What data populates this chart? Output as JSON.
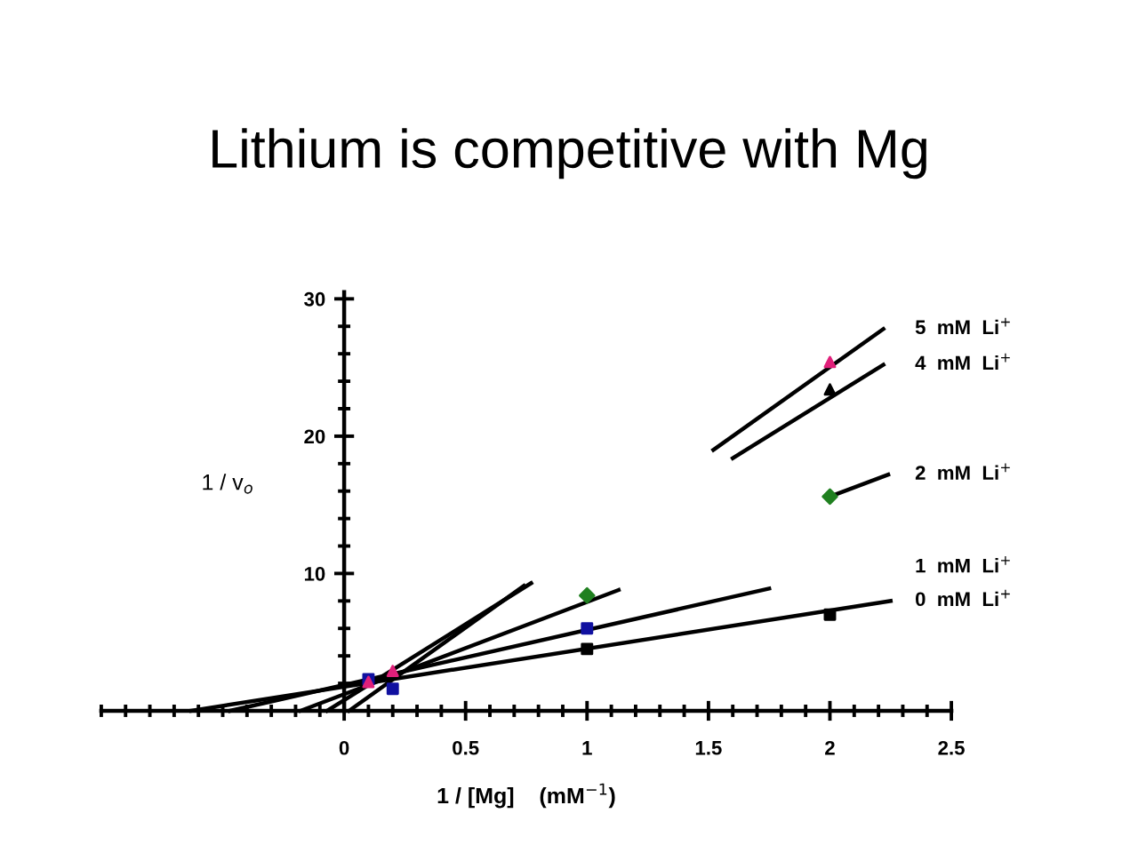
{
  "chart_data": {
    "type": "scatter",
    "title": "Lithium is competitive with Mg",
    "xlabel": "1 / [Mg]    (mM$^{−1}$)",
    "ylabel": "1 / v$_{o}$",
    "xlim": [
      -1,
      2.5
    ],
    "ylim": [
      0,
      30.5
    ],
    "xticks": [
      0,
      0.5,
      1,
      1.5,
      2,
      2.5
    ],
    "yticks": [
      10,
      20,
      30
    ],
    "grid": false,
    "legend": false,
    "series": [
      {
        "color": "#000000",
        "marker": "square",
        "x": [
          1,
          2
        ],
        "values": [
          4.5,
          7.0
        ]
      },
      {
        "color": "#1010a0",
        "marker": "square",
        "x": [
          0.1,
          0.2,
          1
        ],
        "values": [
          2.3,
          1.6,
          6.0
        ]
      },
      {
        "color": "#208020",
        "marker": "diamond",
        "x": [
          1,
          2
        ],
        "values": [
          8.4,
          15.6
        ]
      },
      {
        "color": "#000000",
        "marker": "triangle",
        "x": [
          2
        ],
        "values": [
          23.4
        ]
      },
      {
        "color": "#e0207a",
        "marker": "triangle",
        "x": [
          0.1,
          0.2,
          2
        ],
        "values": [
          2.1,
          2.9,
          25.4
        ]
      },
      {
        "type": "line",
        "name": "0  mM  Li$^{+}$",
        "color": "#000000",
        "x": [
          -0.63,
          2.25
        ],
        "values": [
          0,
          8.0
        ]
      },
      {
        "type": "line",
        "name": "1  mM  Li$^{+}$",
        "color": "#000000",
        "x": [
          -0.47,
          1.75
        ],
        "values": [
          0,
          8.9
        ]
      },
      {
        "type": "line",
        "name": "2  mM  Li$^{+}$",
        "color": "#000000",
        "x": [
          -0.18,
          1.13,
          null,
          2.0,
          2.24
        ],
        "values": [
          0,
          8.8,
          null,
          15.6,
          17.2
        ]
      },
      {
        "type": "line",
        "name": "4  mM  Li$^{+}$",
        "color": "#000000",
        "x": [
          -0.07,
          0.77,
          null,
          1.6,
          2.22
        ],
        "values": [
          0,
          9.3,
          null,
          18.4,
          25.2
        ]
      },
      {
        "type": "line",
        "name": "5  mM  Li$^{+}$",
        "color": "#000000",
        "x": [
          0.02,
          0.74,
          null,
          1.52,
          2.22
        ],
        "values": [
          0,
          9.1,
          null,
          19.0,
          27.8
        ]
      }
    ]
  }
}
